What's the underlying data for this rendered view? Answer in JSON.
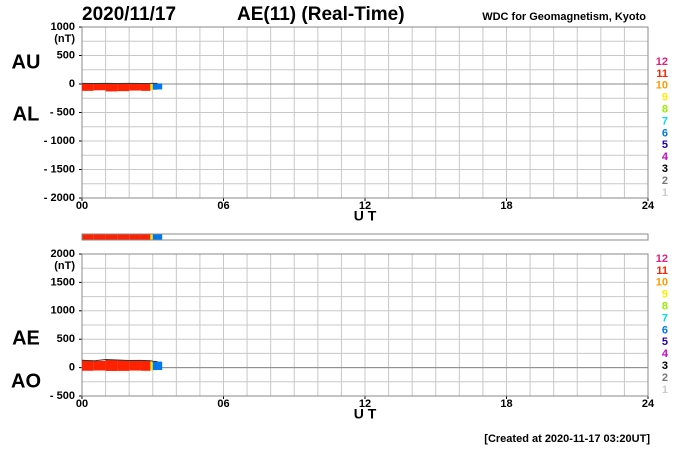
{
  "date": "2020/11/17",
  "title": "AE(11) (Real-Time)",
  "source": "WDC for Geomagnetism, Kyoto",
  "footer": "[Created at 2020-11-17 03:20UT]",
  "legend": [
    {
      "label": "12",
      "color": "#e0207f"
    },
    {
      "label": "11",
      "color": "#ff2200"
    },
    {
      "label": "10",
      "color": "#ff9900"
    },
    {
      "label": "9",
      "color": "#ffee00"
    },
    {
      "label": "8",
      "color": "#99ee00"
    },
    {
      "label": "7",
      "color": "#00ddee"
    },
    {
      "label": "6",
      "color": "#0077ee"
    },
    {
      "label": "5",
      "color": "#2200aa"
    },
    {
      "label": "4",
      "color": "#cc00cc"
    },
    {
      "label": "3",
      "color": "#000000"
    },
    {
      "label": "2",
      "color": "#777777"
    },
    {
      "label": "1",
      "color": "#cccccc"
    }
  ],
  "chart_data": [
    {
      "type": "band",
      "unit": "(nT)",
      "xlabel": "U T",
      "xlim": [
        0,
        24
      ],
      "xticks": [
        {
          "value": 0,
          "label": "00"
        },
        {
          "value": 6,
          "label": "06"
        },
        12,
        18,
        24
      ],
      "xgrid": [
        0,
        1,
        2,
        3,
        4,
        5,
        6,
        7,
        8,
        9,
        10,
        11,
        12,
        13,
        14,
        15,
        16,
        17,
        18,
        19,
        20,
        21,
        22,
        23,
        24
      ],
      "ylim": [
        -2000,
        1000
      ],
      "yticks": [
        1000,
        500,
        0,
        {
          "value": -500,
          "label": "- 500"
        },
        {
          "value": -1000,
          "label": "- 1000"
        },
        {
          "value": -1500,
          "label": "- 1500"
        },
        {
          "value": -2000,
          "label": "- 2000"
        }
      ],
      "ygrid": [
        1000,
        750,
        500,
        250,
        0,
        -250,
        -500,
        -750,
        -1000,
        -1250,
        -1500,
        -1750,
        -2000
      ],
      "x": [
        0,
        0.5,
        1,
        1.5,
        2,
        2.5,
        2.9,
        3.0,
        3.2
      ],
      "stations": [
        11,
        11,
        11,
        11,
        11,
        11,
        9,
        6,
        6
      ],
      "series": [
        {
          "name": "AU",
          "values": [
            10,
            8,
            12,
            9,
            10,
            8,
            10,
            12,
            10
          ]
        },
        {
          "name": "AL",
          "values": [
            -120,
            -110,
            -130,
            -125,
            -115,
            -120,
            -110,
            -100,
            -95
          ]
        }
      ]
    },
    {
      "type": "band",
      "unit": "(nT)",
      "xlabel": "U T",
      "xlim": [
        0,
        24
      ],
      "xticks": [
        {
          "value": 0,
          "label": "00"
        },
        {
          "value": 6,
          "label": "06"
        },
        12,
        18,
        24
      ],
      "xgrid": [
        0,
        1,
        2,
        3,
        4,
        5,
        6,
        7,
        8,
        9,
        10,
        11,
        12,
        13,
        14,
        15,
        16,
        17,
        18,
        19,
        20,
        21,
        22,
        23,
        24
      ],
      "ylim": [
        -500,
        2000
      ],
      "yticks": [
        2000,
        1500,
        1000,
        500,
        0,
        {
          "value": -500,
          "label": "- 500"
        }
      ],
      "ygrid": [
        2000,
        1750,
        1500,
        1250,
        1000,
        750,
        500,
        250,
        0,
        -250,
        -500
      ],
      "x": [
        0,
        0.5,
        1,
        1.5,
        2,
        2.5,
        2.9,
        3.0,
        3.2
      ],
      "stations": [
        11,
        11,
        11,
        11,
        11,
        11,
        9,
        6,
        6
      ],
      "series": [
        {
          "name": "AE",
          "values": [
            130,
            118,
            142,
            134,
            125,
            128,
            120,
            112,
            105
          ]
        },
        {
          "name": "AO",
          "values": [
            -55,
            -51,
            -59,
            -58,
            -52,
            -56,
            -50,
            -44,
            -42
          ]
        }
      ]
    }
  ]
}
